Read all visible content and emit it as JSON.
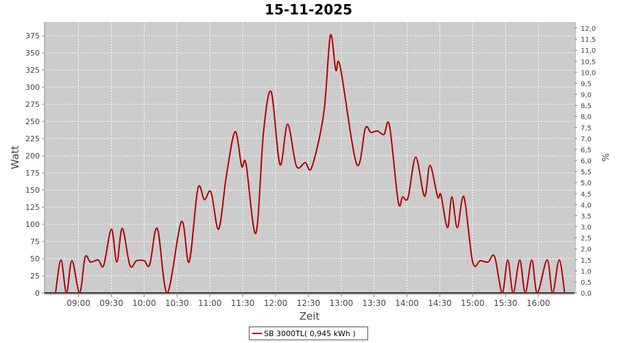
{
  "chart_data": {
    "type": "line",
    "title": "15-11-2025",
    "xlabel": "Zeit",
    "ylabel": "Watt",
    "ylabel_right": "%",
    "xlim": [
      "08:29",
      "16:33"
    ],
    "ylim": [
      0,
      395
    ],
    "ylim_right": [
      0,
      12.28
    ],
    "x_ticks": [
      "09:00",
      "09:30",
      "10:00",
      "10:30",
      "11:00",
      "11:30",
      "12:00",
      "12:30",
      "13:00",
      "13:30",
      "14:00",
      "14:30",
      "15:00",
      "15:30",
      "16:00"
    ],
    "y_ticks": [
      0,
      25,
      50,
      75,
      100,
      125,
      150,
      175,
      200,
      225,
      250,
      275,
      300,
      325,
      350,
      375
    ],
    "y_ticks_right": [
      "0,0",
      "0,5",
      "1,0",
      "1,5",
      "2,0",
      "2,5",
      "3,0",
      "3,5",
      "4,0",
      "4,5",
      "5,0",
      "5,5",
      "6,0",
      "6,5",
      "7,0",
      "7,5",
      "8,0",
      "8,5",
      "9,0",
      "9,5",
      "10,0",
      "10,5",
      "11,0",
      "11,5",
      "12,0"
    ],
    "grid": true,
    "legend_position": "bottom",
    "colors": {
      "series": "#b00000",
      "plot_bg": "#cccccc",
      "grid": "#ffffff"
    },
    "series": [
      {
        "name": "SB 3000TL( 0,945 kWh )",
        "x": [
          "08:39",
          "08:44",
          "08:49",
          "08:54",
          "09:01",
          "09:06",
          "09:11",
          "09:18",
          "09:23",
          "09:30",
          "09:35",
          "09:40",
          "09:47",
          "09:53",
          "10:00",
          "10:05",
          "10:12",
          "10:21",
          "10:34",
          "10:41",
          "10:49",
          "10:55",
          "11:01",
          "11:08",
          "11:15",
          "11:23",
          "11:29",
          "11:33",
          "11:42",
          "11:49",
          "11:56",
          "12:04",
          "12:11",
          "12:19",
          "12:27",
          "12:33",
          "12:44",
          "12:50",
          "12:55",
          "12:59",
          "13:14",
          "13:22",
          "13:27",
          "13:33",
          "13:39",
          "13:44",
          "13:52",
          "13:56",
          "14:01",
          "14:08",
          "14:16",
          "14:21",
          "14:28",
          "14:31",
          "14:37",
          "14:41",
          "14:46",
          "14:52",
          "15:00",
          "15:07",
          "15:14",
          "15:20",
          "15:27",
          "15:32",
          "15:37",
          "15:43",
          "15:48",
          "15:54",
          "15:59",
          "16:08",
          "16:13",
          "16:19",
          "16:24"
        ],
        "values": [
          0,
          48,
          0,
          47,
          0,
          52,
          45,
          48,
          40,
          93,
          45,
          94,
          40,
          47,
          47,
          41,
          94,
          0,
          104,
          45,
          152,
          136,
          147,
          93,
          170,
          235,
          185,
          188,
          87,
          235,
          293,
          187,
          246,
          185,
          190,
          183,
          262,
          375,
          325,
          330,
          188,
          240,
          234,
          236,
          231,
          244,
          133,
          140,
          139,
          198,
          141,
          186,
          140,
          143,
          95,
          140,
          95,
          140,
          45,
          47,
          45,
          53,
          0,
          48,
          0,
          48,
          0,
          48,
          0,
          48,
          0,
          48,
          0
        ]
      }
    ]
  }
}
